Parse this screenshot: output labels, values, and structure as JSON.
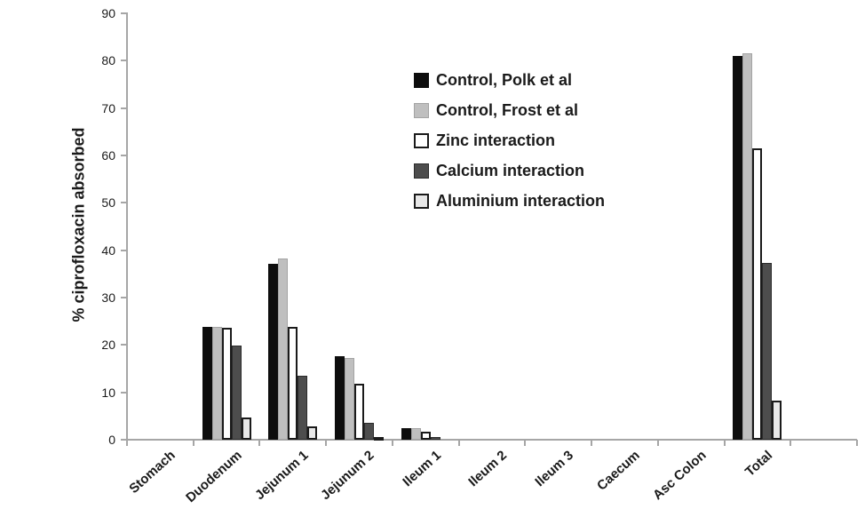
{
  "figure": {
    "background": "#ffffff",
    "axis_color": "#a6a6a6",
    "text_color": "#1a1a1a"
  },
  "chart_data": {
    "type": "bar",
    "title": "",
    "xlabel": "",
    "ylabel": "% ciprofloxacin absorbed",
    "ylim": [
      0,
      90
    ],
    "y_ticks": [
      0,
      10,
      20,
      30,
      40,
      50,
      60,
      70,
      80,
      90
    ],
    "grid": false,
    "legend_position": "upper center-right, vertical list",
    "categories": [
      "Stomach",
      "Duodenum",
      "Jejunum 1",
      "Jejunum 2",
      "Ileum 1",
      "Ileum 2",
      "Ileum 3",
      "Caecum",
      "Asc Colon",
      "Total"
    ],
    "series": [
      {
        "name": "Control, Polk et al",
        "fill": "#0d0d0d",
        "border": "none",
        "border_px": 0,
        "values": [
          0,
          23.8,
          37.2,
          17.6,
          2.4,
          0,
          0,
          0,
          0,
          81.0
        ]
      },
      {
        "name": "Control, Frost et al",
        "fill": "#bfbfbf",
        "border": "#a3a3a3",
        "border_px": 1,
        "values": [
          0,
          23.8,
          38.3,
          17.2,
          2.5,
          0,
          0,
          0,
          0,
          81.5
        ]
      },
      {
        "name": "Zinc interaction",
        "fill": "#ffffff",
        "border": "#1a1a1a",
        "border_px": 2,
        "values": [
          0,
          23.7,
          23.9,
          11.9,
          1.7,
          0,
          0,
          0,
          0,
          61.5
        ]
      },
      {
        "name": "Calcium interaction",
        "fill": "#4d4d4d",
        "border": "#2b2b2b",
        "border_px": 1,
        "values": [
          0,
          19.8,
          13.5,
          3.6,
          0.6,
          0,
          0,
          0,
          0,
          37.3
        ]
      },
      {
        "name": "Aluminium interaction",
        "fill": "#e8e8e8",
        "border": "#1a1a1a",
        "border_px": 2,
        "values": [
          0,
          4.7,
          2.9,
          0.6,
          0,
          0,
          0,
          0,
          0,
          8.3
        ]
      }
    ]
  }
}
